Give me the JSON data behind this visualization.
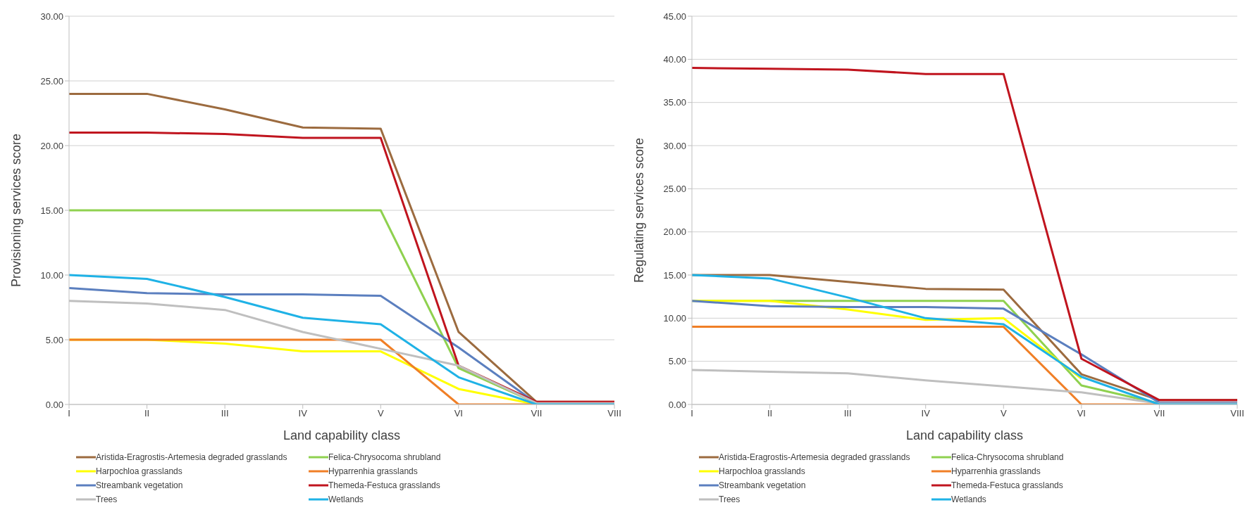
{
  "chart_data": [
    {
      "type": "line",
      "xlabel": "Land capability class",
      "ylabel": "Provisioning services score",
      "categories": [
        "I",
        "II",
        "III",
        "IV",
        "V",
        "VI",
        "VII",
        "VIII"
      ],
      "ylim": [
        0,
        30
      ],
      "yticks": [
        {
          "value": 0,
          "label": "0.00"
        },
        {
          "value": 5,
          "label": "5.00"
        },
        {
          "value": 10,
          "label": "10.00"
        },
        {
          "value": 15,
          "label": "15.00"
        },
        {
          "value": 20,
          "label": "20.00"
        },
        {
          "value": 25,
          "label": "25.00"
        },
        {
          "value": 30,
          "label": "30.00"
        }
      ],
      "grid": "y",
      "legend": "bottom",
      "marker": "none",
      "series": [
        {
          "name": "Aristida-Eragrostis-Artemesia degraded grasslands",
          "color": "#9c6b3f",
          "values": [
            24,
            24,
            22.8,
            21.4,
            21.3,
            5.6,
            0.2,
            0.2
          ]
        },
        {
          "name": "Felica-Chrysocoma shrubland",
          "color": "#8fd14f",
          "values": [
            15,
            15,
            15,
            15,
            15,
            2.8,
            0.1,
            0.1
          ]
        },
        {
          "name": "Harpochloa grasslands",
          "color": "#ffff00",
          "values": [
            5,
            5,
            4.7,
            4.1,
            4.1,
            1.2,
            0,
            0
          ]
        },
        {
          "name": "Hyparrenhia grasslands",
          "color": "#f07f26",
          "values": [
            5,
            5,
            5,
            5,
            5,
            0,
            0,
            0
          ]
        },
        {
          "name": "Streambank vegetation",
          "color": "#5b7fbf",
          "values": [
            9,
            8.6,
            8.5,
            8.5,
            8.4,
            4.4,
            0.1,
            0.1
          ]
        },
        {
          "name": "Themeda-Festuca grasslands",
          "color": "#c0141e",
          "values": [
            21,
            21,
            20.9,
            20.6,
            20.6,
            3,
            0.2,
            0.2
          ]
        },
        {
          "name": "Trees",
          "color": "#bfbfbf",
          "values": [
            8,
            7.8,
            7.3,
            5.6,
            4.3,
            3,
            0.1,
            0.1
          ]
        },
        {
          "name": "Wetlands",
          "color": "#1fb2e6",
          "values": [
            10,
            9.7,
            8.3,
            6.7,
            6.2,
            2.1,
            0,
            0
          ]
        }
      ]
    },
    {
      "type": "line",
      "xlabel": "Land capability class",
      "ylabel": "Regulating services score",
      "categories": [
        "I",
        "II",
        "III",
        "IV",
        "V",
        "VI",
        "VII",
        "VIII"
      ],
      "ylim": [
        0,
        45
      ],
      "yticks": [
        {
          "value": 0,
          "label": "0.00"
        },
        {
          "value": 5,
          "label": "5.00"
        },
        {
          "value": 10,
          "label": "10.00"
        },
        {
          "value": 15,
          "label": "15.00"
        },
        {
          "value": 20,
          "label": "20.00"
        },
        {
          "value": 25,
          "label": "25.00"
        },
        {
          "value": 30,
          "label": "30.00"
        },
        {
          "value": 35,
          "label": "35.00"
        },
        {
          "value": 40,
          "label": "40.00"
        },
        {
          "value": 45,
          "label": "45.00"
        }
      ],
      "grid": "y",
      "legend": "bottom",
      "marker": "none",
      "series": [
        {
          "name": "Aristida-Eragrostis-Artemesia degraded grasslands",
          "color": "#9c6b3f",
          "values": [
            15,
            15,
            14.2,
            13.4,
            13.3,
            3.5,
            0.5,
            0.5
          ]
        },
        {
          "name": "Felica-Chrysocoma shrubland",
          "color": "#8fd14f",
          "values": [
            12,
            12,
            12,
            12,
            12,
            2.2,
            0.1,
            0.1
          ]
        },
        {
          "name": "Harpochloa grasslands",
          "color": "#ffff00",
          "values": [
            12,
            12,
            11,
            9.8,
            10,
            3,
            null,
            null
          ]
        },
        {
          "name": "Hyparrenhia grasslands",
          "color": "#f07f26",
          "values": [
            9,
            9,
            9,
            9,
            9,
            0,
            0,
            0
          ]
        },
        {
          "name": "Streambank vegetation",
          "color": "#5b7fbf",
          "values": [
            12,
            11.4,
            11.3,
            11.3,
            11.1,
            5.8,
            0.2,
            0.2
          ]
        },
        {
          "name": "Themeda-Festuca grasslands",
          "color": "#c0141e",
          "values": [
            39,
            38.9,
            38.8,
            38.3,
            38.3,
            5.3,
            0.5,
            0.5
          ]
        },
        {
          "name": "Trees",
          "color": "#bfbfbf",
          "values": [
            4,
            3.8,
            3.6,
            2.8,
            2.1,
            1.4,
            0.1,
            0.1
          ]
        },
        {
          "name": "Wetlands",
          "color": "#1fb2e6",
          "values": [
            15,
            14.6,
            12.4,
            10,
            9.3,
            3.2,
            0,
            0
          ]
        }
      ]
    }
  ]
}
